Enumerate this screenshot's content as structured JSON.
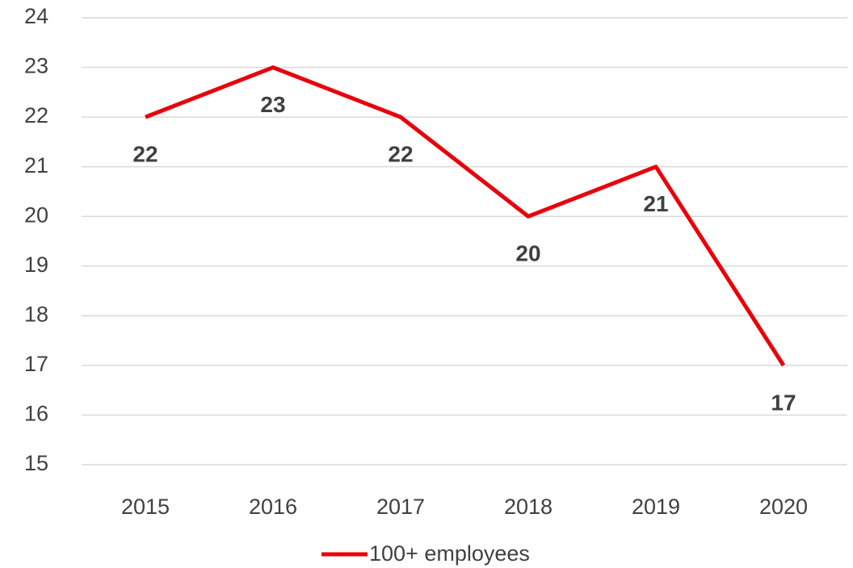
{
  "chart_data": {
    "type": "line",
    "categories": [
      "2015",
      "2016",
      "2017",
      "2018",
      "2019",
      "2020"
    ],
    "series": [
      {
        "name": "100+ employees",
        "color": "#e8000b",
        "values": [
          22,
          23,
          22,
          20,
          21,
          17
        ]
      }
    ],
    "ylim": [
      15,
      24
    ],
    "yticks": [
      15,
      16,
      17,
      18,
      19,
      20,
      21,
      22,
      23,
      24
    ],
    "grid": true,
    "legend": "bottom"
  }
}
